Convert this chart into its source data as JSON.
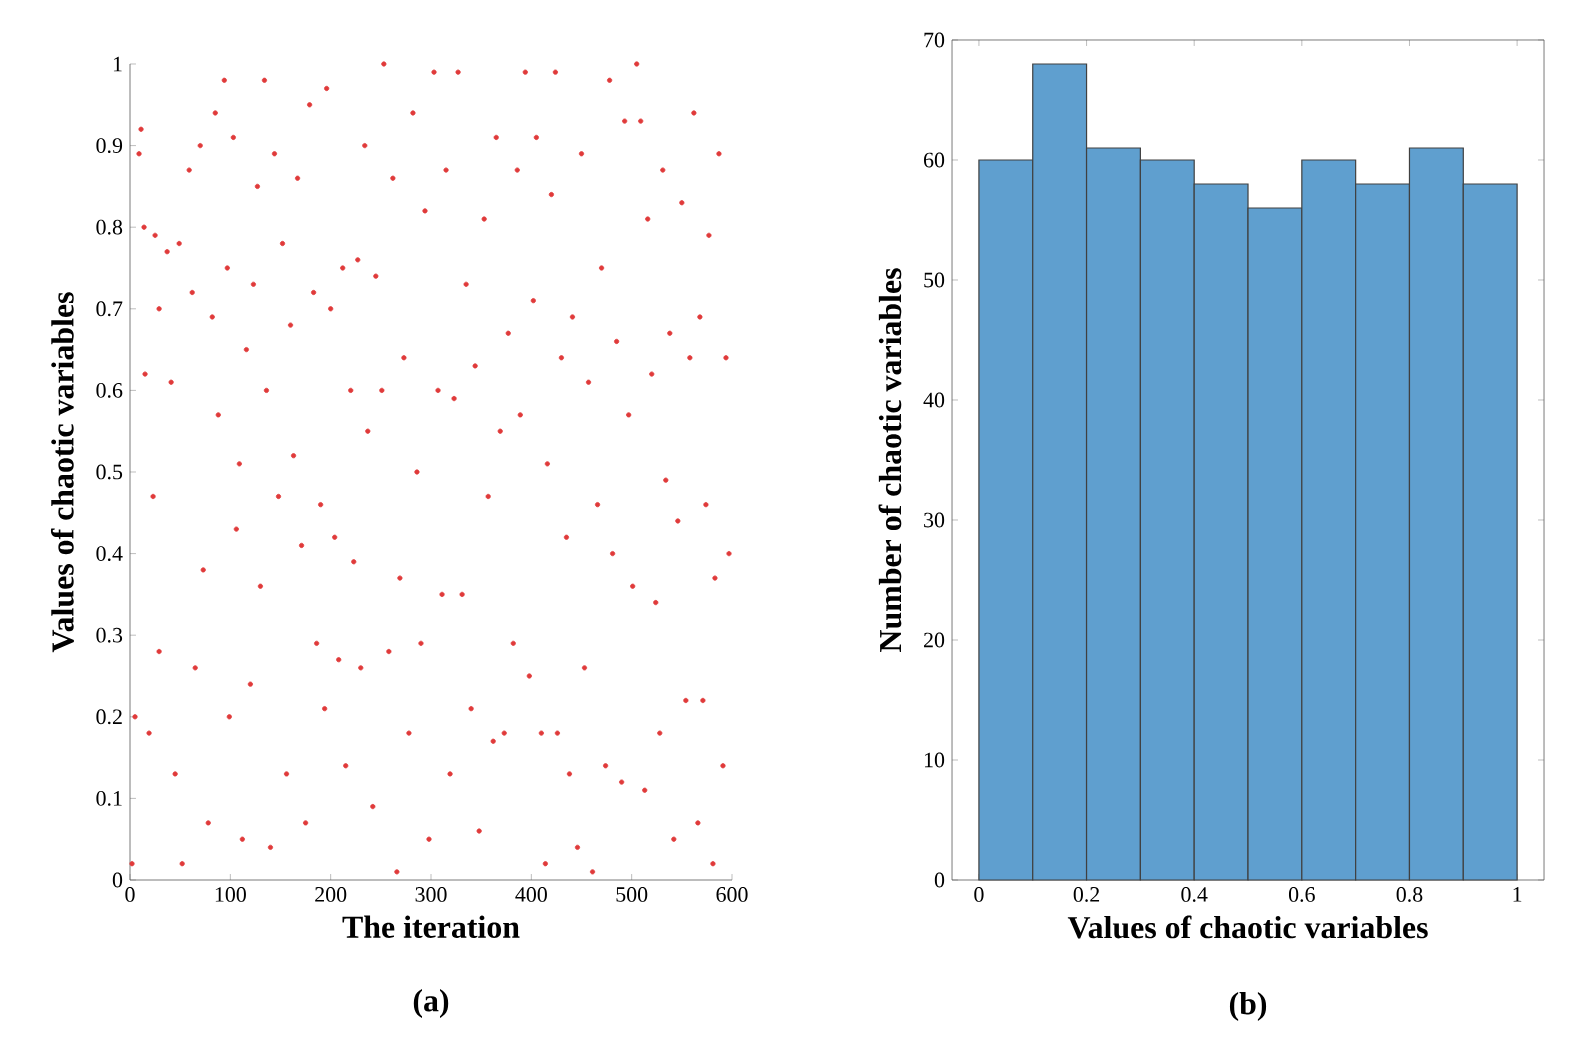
{
  "chart_data": [
    {
      "type": "scatter",
      "xlabel": "The iteration",
      "ylabel": "Values of chaotic variables",
      "annotations": [
        "(a)"
      ],
      "xlim": [
        0,
        600
      ],
      "ylim": [
        0,
        1
      ],
      "xticks": [
        0,
        100,
        200,
        300,
        400,
        500,
        600
      ],
      "yticks": [
        0,
        0.1,
        0.2,
        0.3,
        0.4,
        0.5,
        0.6,
        0.7,
        0.8,
        0.9,
        1
      ],
      "marker": "circle",
      "color": "#e03a3a",
      "x": [
        2,
        5,
        9,
        11,
        14,
        15,
        19,
        23,
        25,
        29,
        29,
        37,
        41,
        45,
        49,
        52,
        59,
        62,
        65,
        70,
        73,
        78,
        82,
        85,
        88,
        94,
        97,
        99,
        103,
        106,
        109,
        112,
        116,
        120,
        123,
        127,
        130,
        134,
        136,
        140,
        144,
        148,
        152,
        156,
        160,
        163,
        167,
        171,
        175,
        179,
        183,
        186,
        190,
        194,
        196,
        200,
        204,
        208,
        212,
        215,
        220,
        223,
        227,
        230,
        234,
        237,
        242,
        245,
        251,
        253,
        258,
        262,
        266,
        269,
        273,
        278,
        282,
        286,
        290,
        294,
        298,
        303,
        307,
        311,
        315,
        319,
        323,
        327,
        331,
        335,
        340,
        344,
        348,
        353,
        357,
        362,
        365,
        369,
        373,
        377,
        382,
        386,
        389,
        394,
        398,
        402,
        405,
        410,
        414,
        416,
        420,
        424,
        426,
        430,
        435,
        438,
        441,
        446,
        450,
        453,
        457,
        461,
        466,
        470,
        474,
        478,
        481,
        485,
        490,
        493,
        497,
        501,
        505,
        509,
        513,
        516,
        520,
        524,
        528,
        531,
        534,
        538,
        542,
        546,
        550,
        554,
        558,
        562,
        566,
        568,
        571,
        574,
        577,
        581,
        583,
        587,
        591,
        594,
        597
      ],
      "values": [
        0.02,
        0.2,
        0.89,
        0.92,
        0.8,
        0.62,
        0.18,
        0.47,
        0.79,
        0.7,
        0.28,
        0.77,
        0.61,
        0.13,
        0.78,
        0.02,
        0.87,
        0.72,
        0.26,
        0.9,
        0.38,
        0.07,
        0.69,
        0.94,
        0.57,
        0.98,
        0.75,
        0.2,
        0.91,
        0.43,
        0.51,
        0.05,
        0.65,
        0.24,
        0.73,
        0.85,
        0.36,
        0.98,
        0.6,
        0.04,
        0.89,
        0.47,
        0.78,
        0.13,
        0.68,
        0.52,
        0.86,
        0.41,
        0.07,
        0.95,
        0.72,
        0.29,
        0.46,
        0.21,
        0.97,
        0.7,
        0.42,
        0.27,
        0.75,
        0.14,
        0.6,
        0.39,
        0.76,
        0.26,
        0.9,
        0.55,
        0.09,
        0.74,
        0.6,
        1,
        0.28,
        0.86,
        0.01,
        0.37,
        0.64,
        0.18,
        0.94,
        0.5,
        0.29,
        0.82,
        0.05,
        0.99,
        0.6,
        0.35,
        0.87,
        0.13,
        0.59,
        0.99,
        0.35,
        0.73,
        0.21,
        0.63,
        0.06,
        0.81,
        0.47,
        0.17,
        0.91,
        0.55,
        0.18,
        0.67,
        0.29,
        0.87,
        0.57,
        0.99,
        0.25,
        0.71,
        0.91,
        0.18,
        0.02,
        0.51,
        0.84,
        0.99,
        0.18,
        0.64,
        0.42,
        0.13,
        0.69,
        0.04,
        0.89,
        0.26,
        0.61,
        0.01,
        0.46,
        0.75,
        0.14,
        0.98,
        0.4,
        0.66,
        0.12,
        0.93,
        0.57,
        0.36,
        1,
        0.93,
        0.11,
        0.81,
        0.62,
        0.34,
        0.18,
        0.87,
        0.49,
        0.67,
        0.05,
        0.44,
        0.83,
        0.22,
        0.64,
        0.94,
        0.07,
        0.69,
        0.22,
        0.46,
        0.79,
        0.02,
        0.37,
        0.89,
        0.14,
        0.64,
        0.4
      ]
    },
    {
      "type": "histogram",
      "xlabel": "Values of chaotic variables",
      "ylabel": "Number of chaotic variables",
      "annotations": [
        "(b)"
      ],
      "xlim": [
        -0.05,
        1.05
      ],
      "ylim": [
        0,
        70
      ],
      "xticks": [
        0,
        0.2,
        0.4,
        0.6,
        0.8,
        1
      ],
      "yticks": [
        0,
        10,
        20,
        30,
        40,
        50,
        60,
        70
      ],
      "color": "#5f9fcf",
      "bins": [
        0,
        0.1,
        0.2,
        0.3,
        0.4,
        0.5,
        0.6,
        0.7,
        0.8,
        0.9,
        1
      ],
      "values": [
        60,
        68,
        61,
        60,
        58,
        56,
        60,
        58,
        61,
        58
      ]
    }
  ]
}
